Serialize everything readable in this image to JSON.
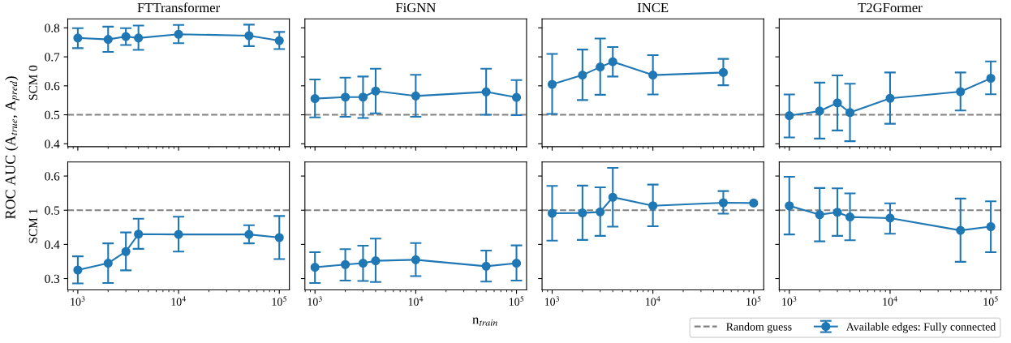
{
  "chart_data": [
    {
      "type": "line",
      "title": "FTTransformer",
      "ylabel": "SCM 0",
      "annotations": [
        "ROC AUC (A$_{true}$, A$_{pred}$)",
        "n$_{train}$"
      ],
      "log": "x",
      "x": [
        1000,
        2000,
        3000,
        4000,
        10000,
        50000,
        100000
      ],
      "xlim": [
        794.3,
        125893
      ],
      "xticks": [
        {
          "value": 1000,
          "label": null
        },
        {
          "value": 10000,
          "label": null
        },
        {
          "value": 100000,
          "label": null
        }
      ],
      "ylim": [
        0.39,
        0.831
      ],
      "yticks": [
        0.4,
        0.5,
        0.6,
        0.7,
        0.8
      ],
      "tick_labels": "y",
      "marker": "circle",
      "grid": false,
      "ref_lines": [
        {
          "axis": "y",
          "value": 0.5,
          "color": "#808080",
          "line_style": "dashed"
        }
      ],
      "series": [
        {
          "color": "#1f77b4",
          "values": [
            0.765,
            0.76,
            0.77,
            0.765,
            0.778,
            0.773,
            0.756
          ],
          "errors": [
            [
              0.73,
              0.799
            ],
            [
              0.717,
              0.804
            ],
            [
              0.741,
              0.799
            ],
            [
              0.724,
              0.808
            ],
            [
              0.747,
              0.81
            ],
            [
              0.737,
              0.811
            ],
            [
              0.727,
              0.786
            ]
          ]
        }
      ]
    },
    {
      "type": "line",
      "title": "FiGNN",
      "log": "x",
      "x": [
        1000,
        2000,
        3000,
        4000,
        10000,
        50000,
        100000
      ],
      "xlim": [
        794.3,
        125893
      ],
      "xticks": [
        {
          "value": 1000,
          "label": null
        },
        {
          "value": 10000,
          "label": null
        },
        {
          "value": 100000,
          "label": null
        }
      ],
      "ylim": [
        0.39,
        0.831
      ],
      "yticks": [
        0.4,
        0.5,
        0.6,
        0.7,
        0.8
      ],
      "tick_labels": false,
      "marker": "circle",
      "grid": false,
      "ref_lines": [
        {
          "axis": "y",
          "value": 0.5,
          "color": "#808080",
          "line_style": "dashed"
        }
      ],
      "series": [
        {
          "color": "#1f77b4",
          "values": [
            0.556,
            0.561,
            0.561,
            0.582,
            0.565,
            0.579,
            0.56
          ],
          "errors": [
            [
              0.491,
              0.622
            ],
            [
              0.493,
              0.628
            ],
            [
              0.489,
              0.632
            ],
            [
              0.505,
              0.659
            ],
            [
              0.493,
              0.638
            ],
            [
              0.5,
              0.659
            ],
            [
              0.499,
              0.62
            ]
          ]
        }
      ]
    },
    {
      "type": "line",
      "title": "INCE",
      "log": "x",
      "x": [
        1000,
        2000,
        3000,
        4000,
        10000,
        50000
      ],
      "xlim": [
        794.3,
        125893
      ],
      "xticks": [
        {
          "value": 1000,
          "label": null
        },
        {
          "value": 10000,
          "label": null
        },
        {
          "value": 100000,
          "label": null
        }
      ],
      "ylim": [
        0.39,
        0.831
      ],
      "yticks": [
        0.4,
        0.5,
        0.6,
        0.7,
        0.8
      ],
      "tick_labels": false,
      "marker": "circle",
      "grid": false,
      "ref_lines": [
        {
          "axis": "y",
          "value": 0.5,
          "color": "#808080",
          "line_style": "dashed"
        }
      ],
      "series": [
        {
          "color": "#1f77b4",
          "values": [
            0.605,
            0.637,
            0.665,
            0.683,
            0.637,
            0.646
          ],
          "errors": [
            [
              0.503,
              0.71
            ],
            [
              0.551,
              0.725
            ],
            [
              0.569,
              0.763
            ],
            [
              0.632,
              0.734
            ],
            [
              0.57,
              0.706
            ],
            [
              0.602,
              0.693
            ]
          ]
        }
      ]
    },
    {
      "type": "line",
      "title": "T2GFormer",
      "log": "x",
      "x": [
        1000,
        2000,
        3000,
        4000,
        10000,
        50000,
        100000
      ],
      "xlim": [
        794.3,
        125893
      ],
      "xticks": [
        {
          "value": 1000,
          "label": null
        },
        {
          "value": 10000,
          "label": null
        },
        {
          "value": 100000,
          "label": null
        }
      ],
      "ylim": [
        0.39,
        0.831
      ],
      "yticks": [
        0.4,
        0.5,
        0.6,
        0.7,
        0.8
      ],
      "tick_labels": false,
      "marker": "circle",
      "grid": false,
      "ref_lines": [
        {
          "axis": "y",
          "value": 0.5,
          "color": "#808080",
          "line_style": "dashed"
        }
      ],
      "series": [
        {
          "color": "#1f77b4",
          "values": [
            0.497,
            0.513,
            0.541,
            0.508,
            0.557,
            0.58,
            0.626
          ],
          "errors": [
            [
              0.422,
              0.57
            ],
            [
              0.418,
              0.611
            ],
            [
              0.446,
              0.636
            ],
            [
              0.409,
              0.607
            ],
            [
              0.469,
              0.646
            ],
            [
              0.515,
              0.646
            ],
            [
              0.571,
              0.684
            ]
          ]
        }
      ]
    },
    {
      "type": "line",
      "ylabel": "SCM 1",
      "log": "x",
      "x": [
        1000,
        2000,
        3000,
        4000,
        10000,
        50000,
        100000
      ],
      "xlim": [
        794.3,
        125893
      ],
      "xticks": [
        {
          "value": 1000,
          "label": "10$^{3}$"
        },
        {
          "value": 10000,
          "label": "10$^{4}$"
        },
        {
          "value": 100000,
          "label": "10$^{5}$"
        }
      ],
      "ylim": [
        0.267,
        0.641
      ],
      "yticks": [
        0.3,
        0.4,
        0.5,
        0.6
      ],
      "marker": "circle",
      "grid": false,
      "ref_lines": [
        {
          "axis": "y",
          "value": 0.5,
          "color": "#808080",
          "line_style": "dashed"
        }
      ],
      "series": [
        {
          "color": "#1f77b4",
          "values": [
            0.325,
            0.345,
            0.379,
            0.43,
            0.429,
            0.429,
            0.42
          ],
          "errors": [
            [
              0.286,
              0.365
            ],
            [
              0.287,
              0.403
            ],
            [
              0.324,
              0.435
            ],
            [
              0.387,
              0.475
            ],
            [
              0.379,
              0.481
            ],
            [
              0.403,
              0.456
            ],
            [
              0.357,
              0.483
            ]
          ]
        }
      ]
    },
    {
      "type": "line",
      "log": "x",
      "x": [
        1000,
        2000,
        3000,
        4000,
        10000,
        50000,
        100000
      ],
      "xlim": [
        794.3,
        125893
      ],
      "xticks": [
        {
          "value": 1000,
          "label": "10$^{3}$"
        },
        {
          "value": 10000,
          "label": "10$^{4}$"
        },
        {
          "value": 100000,
          "label": "10$^{5}$"
        }
      ],
      "ylim": [
        0.267,
        0.641
      ],
      "yticks": [
        0.3,
        0.4,
        0.5,
        0.6
      ],
      "tick_labels": "x",
      "marker": "circle",
      "grid": false,
      "ref_lines": [
        {
          "axis": "y",
          "value": 0.5,
          "color": "#808080",
          "line_style": "dashed"
        }
      ],
      "series": [
        {
          "color": "#1f77b4",
          "values": [
            0.333,
            0.341,
            0.345,
            0.352,
            0.355,
            0.336,
            0.345
          ],
          "errors": [
            [
              0.287,
              0.377
            ],
            [
              0.294,
              0.386
            ],
            [
              0.293,
              0.396
            ],
            [
              0.29,
              0.417
            ],
            [
              0.307,
              0.404
            ],
            [
              0.291,
              0.382
            ],
            [
              0.294,
              0.397
            ]
          ]
        }
      ]
    },
    {
      "type": "line",
      "log": "x",
      "x": [
        1000,
        2000,
        3000,
        4000,
        10000,
        50000,
        100000
      ],
      "xlim": [
        794.3,
        125893
      ],
      "xticks": [
        {
          "value": 1000,
          "label": "10$^{3}$"
        },
        {
          "value": 10000,
          "label": "10$^{4}$"
        },
        {
          "value": 100000,
          "label": "10$^{5}$"
        }
      ],
      "ylim": [
        0.267,
        0.641
      ],
      "yticks": [
        0.3,
        0.4,
        0.5,
        0.6
      ],
      "tick_labels": "x",
      "marker": "circle",
      "grid": false,
      "ref_lines": [
        {
          "axis": "y",
          "value": 0.5,
          "color": "#808080",
          "line_style": "dashed"
        }
      ],
      "series": [
        {
          "color": "#1f77b4",
          "values": [
            0.491,
            0.492,
            0.495,
            0.538,
            0.513,
            0.522,
            0.521
          ],
          "errors": [
            [
              0.411,
              0.571
            ],
            [
              0.413,
              0.572
            ],
            [
              0.425,
              0.567
            ],
            [
              0.452,
              0.624
            ],
            [
              0.453,
              0.575
            ],
            [
              0.49,
              0.556
            ],
            null
          ]
        }
      ]
    },
    {
      "type": "line",
      "log": "x",
      "x": [
        1000,
        2000,
        3000,
        4000,
        10000,
        50000,
        100000
      ],
      "xlim": [
        794.3,
        125893
      ],
      "xticks": [
        {
          "value": 1000,
          "label": "10$^{3}$"
        },
        {
          "value": 10000,
          "label": "10$^{4}$"
        },
        {
          "value": 100000,
          "label": "10$^{5}$"
        }
      ],
      "ylim": [
        0.267,
        0.641
      ],
      "yticks": [
        0.3,
        0.4,
        0.5,
        0.6
      ],
      "tick_labels": "x",
      "marker": "circle",
      "grid": false,
      "legend": "bottom left",
      "ref_lines": [
        {
          "axis": "y",
          "value": 0.5,
          "label": "Random guess",
          "color": "#808080",
          "line_style": "dashed"
        }
      ],
      "series": [
        {
          "name": "Available edges: Fully connected",
          "color": "#1f77b4",
          "values": [
            0.513,
            0.487,
            0.494,
            0.48,
            0.477,
            0.441,
            0.452
          ],
          "errors": [
            [
              0.429,
              0.598
            ],
            [
              0.409,
              0.565
            ],
            [
              0.425,
              0.564
            ],
            [
              0.412,
              0.549
            ],
            [
              0.431,
              0.52
            ],
            [
              0.349,
              0.534
            ],
            [
              0.377,
              0.526
            ]
          ]
        }
      ]
    }
  ]
}
